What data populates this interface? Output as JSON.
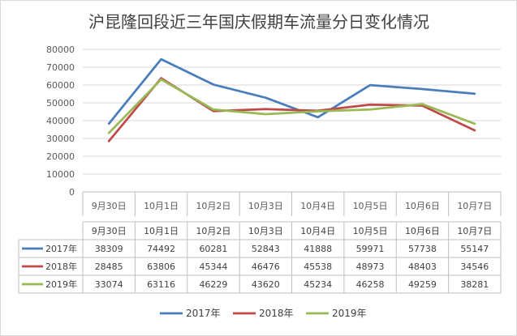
{
  "chart_data": {
    "type": "line",
    "title": "沪昆隆回段近三年国庆假期车流量分日变化情况",
    "categories": [
      "9月30日",
      "10月1日",
      "10月2日",
      "10月3日",
      "10月4日",
      "10月5日",
      "10月6日",
      "10月7日"
    ],
    "ylim": [
      0,
      80000
    ],
    "yticks": [
      0,
      10000,
      20000,
      30000,
      40000,
      50000,
      60000,
      70000,
      80000
    ],
    "grid": true,
    "legend_position": "bottom",
    "data_table": true,
    "series": [
      {
        "name": "2017年",
        "color": "#4a7ebb",
        "values": [
          38309,
          74492,
          60281,
          52843,
          41888,
          59971,
          57738,
          55147
        ]
      },
      {
        "name": "2018年",
        "color": "#be4b48",
        "values": [
          28485,
          63806,
          45344,
          46476,
          45538,
          48973,
          48403,
          34546
        ]
      },
      {
        "name": "2019年",
        "color": "#98b954",
        "values": [
          33074,
          63116,
          46229,
          43620,
          45234,
          46258,
          49259,
          38281
        ]
      }
    ]
  }
}
